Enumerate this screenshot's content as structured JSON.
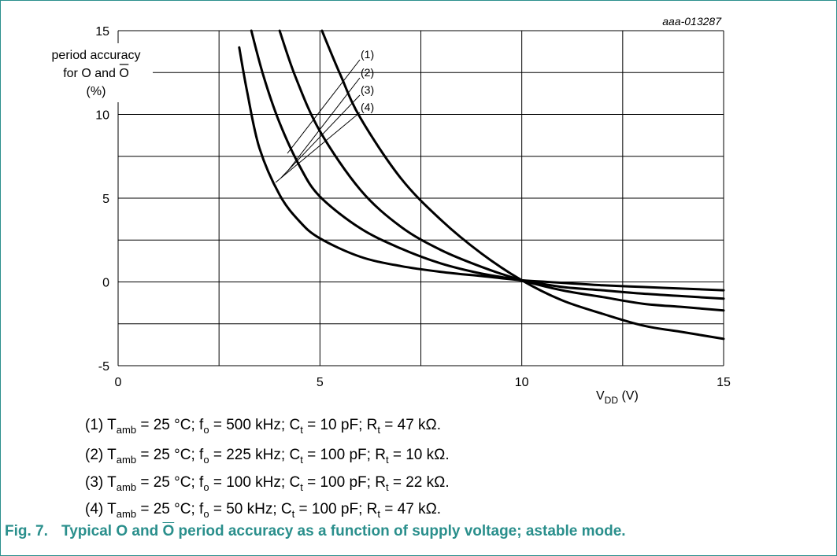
{
  "figure_id": "aaa-013287",
  "chart_data": {
    "type": "line",
    "ylabel_lines": [
      "period accuracy",
      "for O and O",
      "(%)"
    ],
    "xlabel": "VDD (V)",
    "xlim": [
      0,
      15
    ],
    "ylim": [
      -5,
      15
    ],
    "x_ticks": [
      0,
      5,
      10,
      15
    ],
    "y_ticks": [
      15,
      10,
      5,
      0,
      -5
    ],
    "grid": true,
    "series": [
      {
        "name": "(1)",
        "x": [
          5.05,
          5.5,
          6,
          7,
          8,
          9,
          10,
          11,
          12,
          13,
          14,
          15
        ],
        "y": [
          15,
          12.4,
          9.8,
          6.2,
          3.7,
          1.7,
          0.1,
          -1.1,
          -1.9,
          -2.6,
          -3.0,
          -3.4
        ]
      },
      {
        "name": "(2)",
        "x": [
          4,
          4.4,
          5,
          6,
          7,
          8,
          9,
          10,
          11,
          12,
          13,
          14,
          15
        ],
        "y": [
          15,
          12.2,
          9.0,
          5.5,
          3.3,
          1.9,
          0.9,
          0.1,
          -0.5,
          -0.9,
          -1.3,
          -1.5,
          -1.7
        ]
      },
      {
        "name": "(3)",
        "x": [
          3.3,
          3.6,
          4,
          4.5,
          5,
          6,
          7,
          8,
          9,
          10,
          11,
          12,
          13,
          14,
          15
        ],
        "y": [
          15,
          12.3,
          9.5,
          6.9,
          5.1,
          3.2,
          2.0,
          1.1,
          0.5,
          0.1,
          -0.3,
          -0.5,
          -0.7,
          -0.85,
          -1.0
        ]
      },
      {
        "name": "(4)",
        "x": [
          3,
          3.2,
          3.5,
          4,
          4.5,
          5,
          6,
          7,
          8,
          9,
          10,
          11,
          12,
          13,
          14,
          15
        ],
        "y": [
          14,
          11.3,
          8.0,
          5.2,
          3.6,
          2.6,
          1.5,
          0.95,
          0.6,
          0.35,
          0.1,
          -0.05,
          -0.2,
          -0.3,
          -0.4,
          -0.5
        ]
      }
    ],
    "callouts": [
      "(1)",
      "(2)",
      "(3)",
      "(4)"
    ]
  },
  "notes": [
    {
      "idx": "(1)",
      "f": "500 kHz",
      "c": "10 pF",
      "r": "47 kΩ"
    },
    {
      "idx": "(2)",
      "f": "225 kHz",
      "c": "100 pF",
      "r": "10 kΩ"
    },
    {
      "idx": "(3)",
      "f": "100 kHz",
      "c": "100 pF",
      "r": "22 kΩ"
    },
    {
      "idx": "(4)",
      "f": "50 kHz",
      "c": "100 pF",
      "r": "47 kΩ"
    }
  ],
  "note_text": {
    "tamb": "T",
    "tamb_sub": "amb",
    "temp": " = 25 °C; ",
    "f": "f",
    "f_sub": "o",
    "c": "C",
    "c_sub": "t",
    "r": "R",
    "r_sub": "t",
    "eq": " = ",
    "sep": "; ",
    "end": "."
  },
  "caption": {
    "number": "Fig. 7.",
    "text_before": "Typical O and ",
    "overline": "O",
    "text_after": " period accuracy as a function of supply voltage; astable mode."
  },
  "colors": {
    "frame": "#2a8f8c",
    "caption": "#2a8f8c",
    "curve": "#000000",
    "grid": "#000000"
  }
}
